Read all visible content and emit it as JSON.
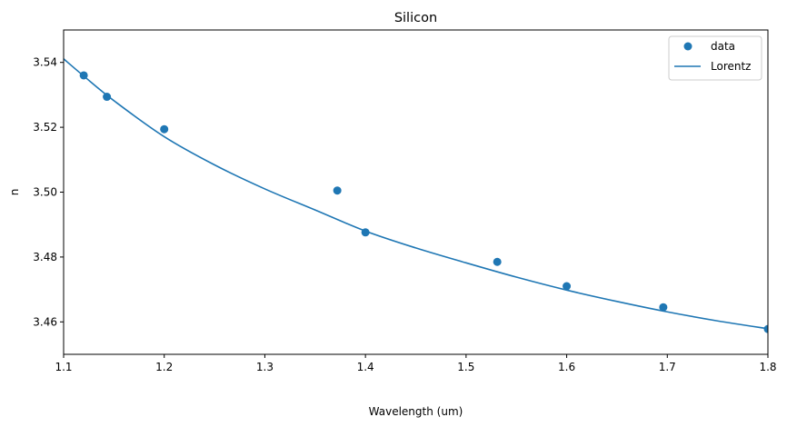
{
  "chart_data": {
    "type": "scatter",
    "title": "Silicon",
    "xlabel": "Wavelength (um)",
    "ylabel": "n",
    "xlim": [
      1.1,
      1.8
    ],
    "ylim": [
      3.45,
      3.55
    ],
    "xticks": [
      1.1,
      1.2,
      1.3,
      1.4,
      1.5,
      1.6,
      1.7,
      1.8
    ],
    "yticks": [
      3.46,
      3.48,
      3.5,
      3.52,
      3.54
    ],
    "xtick_labels": [
      "1.1",
      "1.2",
      "1.3",
      "1.4",
      "1.5",
      "1.6",
      "1.7",
      "1.8"
    ],
    "ytick_labels": [
      "3.46",
      "3.48",
      "3.50",
      "3.52",
      "3.54"
    ],
    "grid": false,
    "legend_position": "top-right",
    "series": [
      {
        "name": "data",
        "kind": "scatter",
        "color": "#1f77b4",
        "x": [
          1.12,
          1.143,
          1.2,
          1.372,
          1.4,
          1.531,
          1.6,
          1.696,
          1.8
        ],
        "y": [
          3.536,
          3.5294,
          3.5194,
          3.5005,
          3.4876,
          3.4785,
          3.471,
          3.4645,
          3.4578
        ]
      },
      {
        "name": "Lorentz",
        "kind": "line",
        "color": "#1f77b4",
        "x": [
          1.1,
          1.12,
          1.15,
          1.2,
          1.25,
          1.3,
          1.35,
          1.4,
          1.45,
          1.5,
          1.55,
          1.6,
          1.65,
          1.7,
          1.75,
          1.8
        ],
        "y": [
          3.5411,
          3.5358,
          3.5282,
          3.5171,
          3.5084,
          3.501,
          3.4945,
          3.488,
          3.4828,
          3.4782,
          3.4738,
          3.4698,
          3.4663,
          3.4631,
          3.4603,
          3.4579
        ]
      }
    ]
  }
}
